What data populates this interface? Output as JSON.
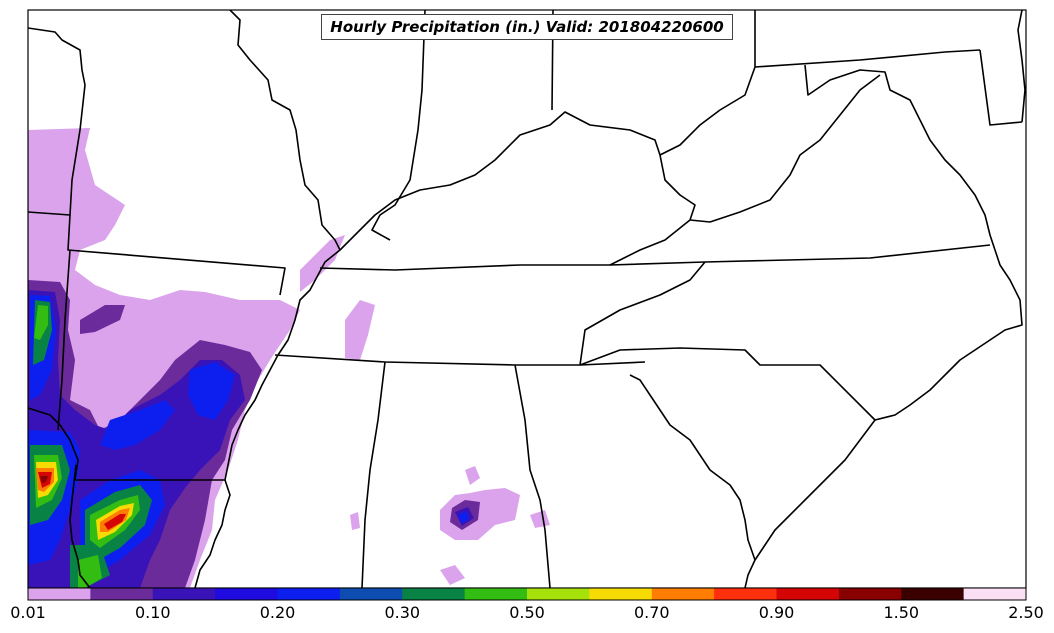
{
  "map": {
    "title": "Hourly Precipitation (in.) Valid: 201804220600",
    "variable": "hourly precipitation",
    "units": "in.",
    "valid_time": "201804220600",
    "region": "southeastern United States"
  },
  "colorbar": {
    "ticks": [
      "0.01",
      "0.10",
      "0.20",
      "0.30",
      "0.50",
      "0.70",
      "0.90",
      "1.50",
      "2.50"
    ],
    "colors": [
      "#dba3ec",
      "#6b2b9b",
      "#3a13b8",
      "#1f0be0",
      "#0c1fee",
      "#0d4cb0",
      "#098245",
      "#33bc11",
      "#a7e10c",
      "#f6dc04",
      "#ff7d00",
      "#fd2f0c",
      "#d50505",
      "#890000",
      "#3a0000",
      "#fbe0f5"
    ]
  }
}
